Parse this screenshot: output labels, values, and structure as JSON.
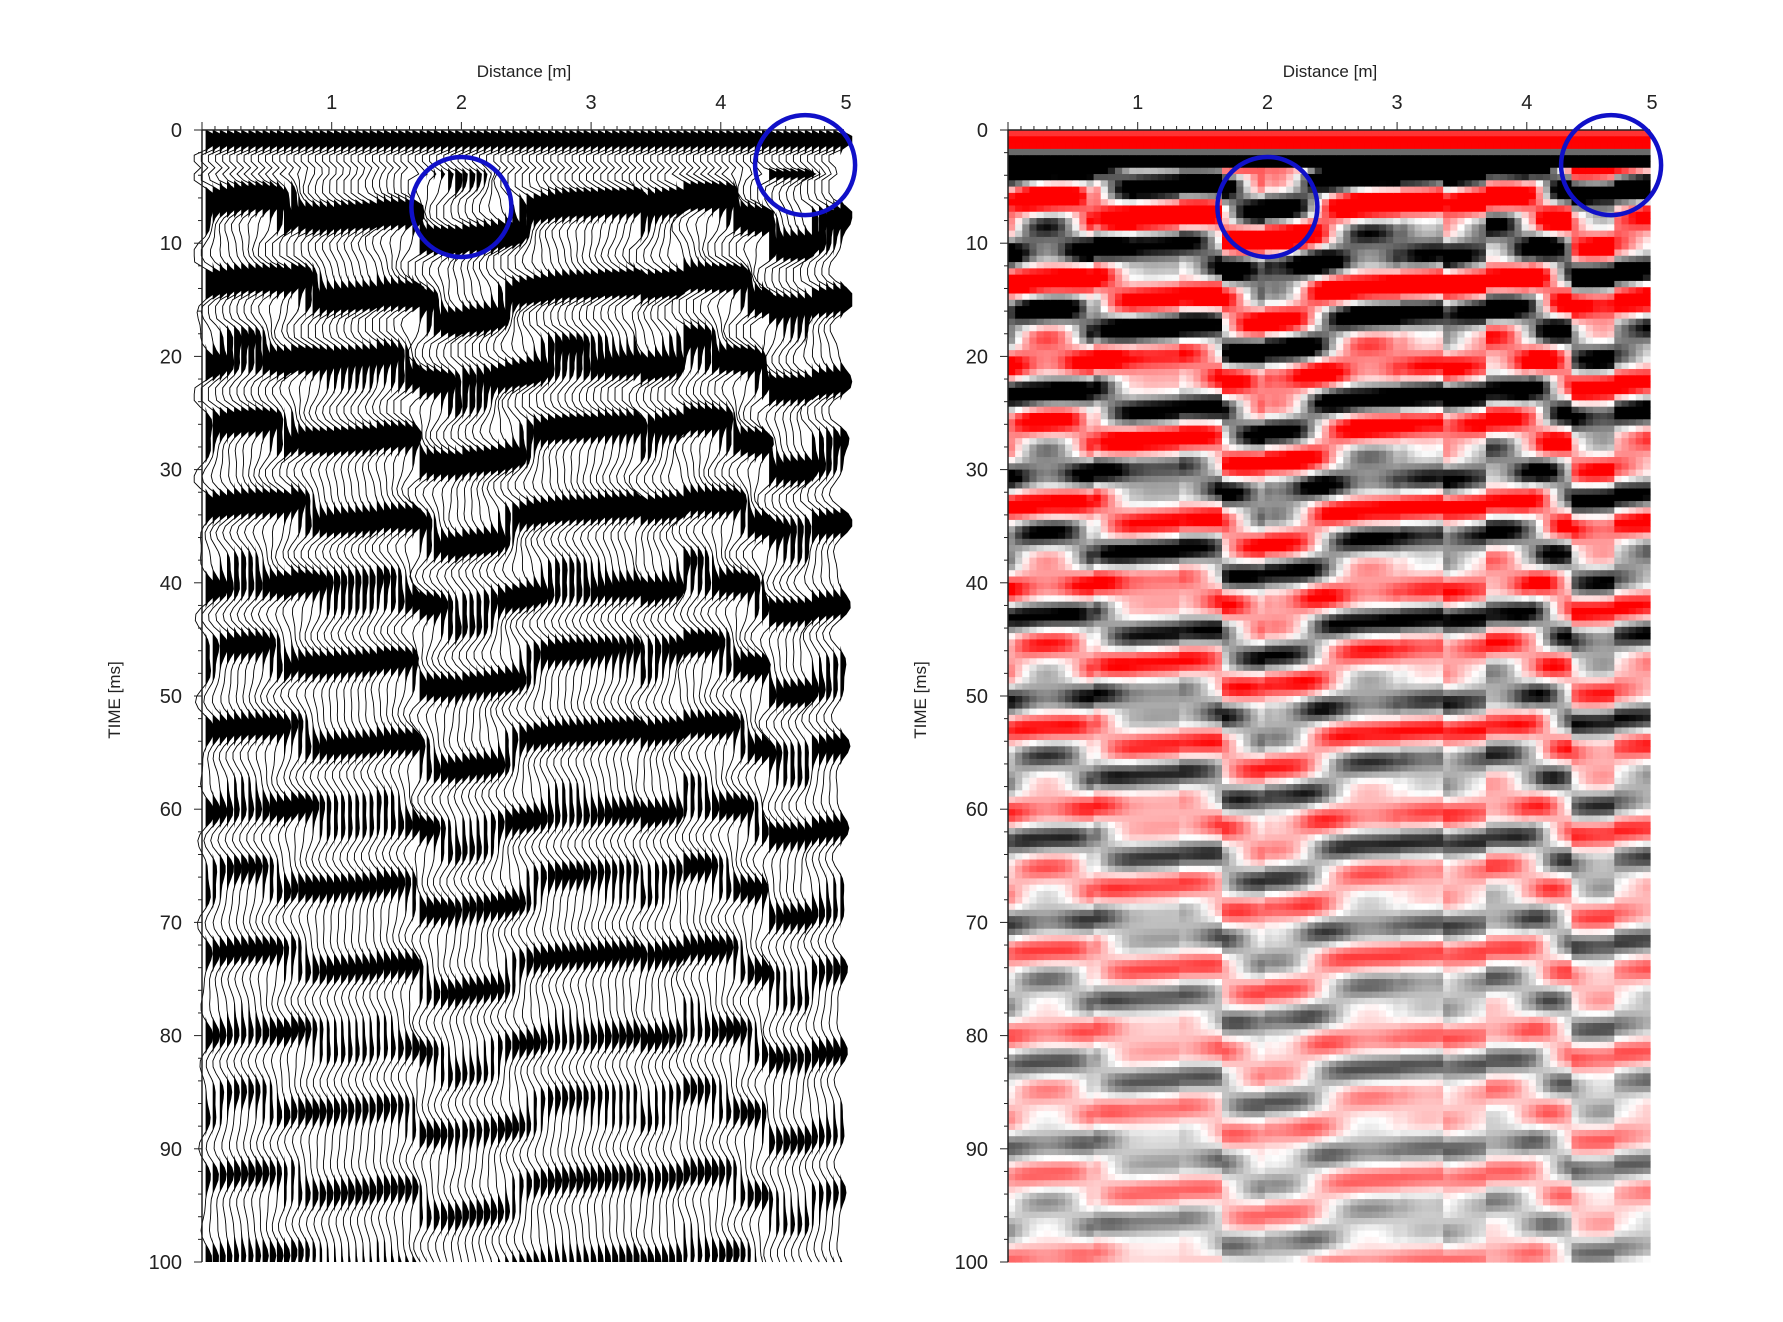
{
  "charts": [
    {
      "id": "wiggle",
      "xlabel": "Distance [m]",
      "ylabel": "TIME [ms]",
      "x_ticks": [
        "1",
        "2",
        "3",
        "4",
        "5"
      ],
      "y_ticks": [
        "0",
        "10",
        "20",
        "30",
        "40",
        "50",
        "60",
        "70",
        "80",
        "90",
        "100"
      ]
    },
    {
      "id": "colored",
      "xlabel": "Distance [m]",
      "ylabel": "TIME [ms]",
      "x_ticks": [
        "1",
        "2",
        "3",
        "4",
        "5"
      ],
      "y_ticks": [
        "0",
        "10",
        "20",
        "30",
        "40",
        "50",
        "60",
        "70",
        "80",
        "90",
        "100"
      ]
    }
  ],
  "chart_data": [
    {
      "type": "heatmap",
      "style": "wiggle-trace",
      "xlabel": "Distance [m]",
      "ylabel": "TIME [ms]",
      "xlim": [
        0,
        4.95
      ],
      "ylim": [
        100,
        0
      ],
      "x_tick_values": [
        1,
        2,
        3,
        4,
        5
      ],
      "y_tick_values": [
        0,
        10,
        20,
        30,
        40,
        50,
        60,
        70,
        80,
        90,
        100
      ],
      "palette": [
        "#000000",
        "#ffffff"
      ],
      "highlights": [
        {
          "x": 2.0,
          "y": 6.8
        },
        {
          "x": 4.65,
          "y": 3.1
        }
      ]
    },
    {
      "type": "heatmap",
      "style": "variable-density",
      "xlabel": "Distance [m]",
      "ylabel": "TIME [ms]",
      "xlim": [
        0,
        4.95
      ],
      "ylim": [
        100,
        0
      ],
      "x_tick_values": [
        1,
        2,
        3,
        4,
        5
      ],
      "y_tick_values": [
        0,
        10,
        20,
        30,
        40,
        50,
        60,
        70,
        80,
        90,
        100
      ],
      "palette": [
        "#ee1111",
        "#ffffff",
        "#000000"
      ],
      "highlights": [
        {
          "x": 2.0,
          "y": 6.8
        },
        {
          "x": 4.65,
          "y": 3.1
        }
      ]
    }
  ],
  "colors": {
    "highlight": "#1010c8",
    "axis": "#222222"
  }
}
